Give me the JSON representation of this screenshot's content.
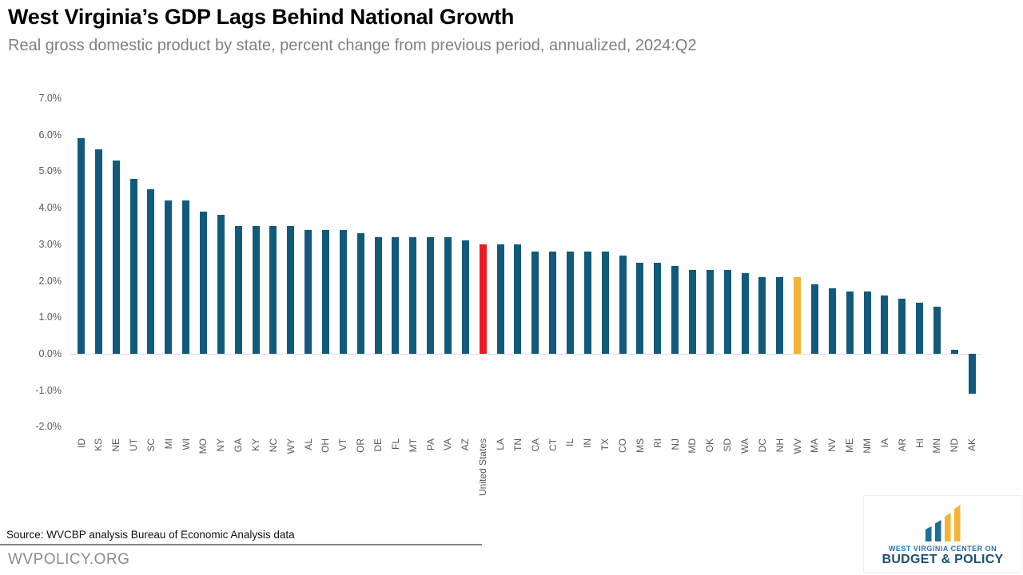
{
  "header": {
    "title": "West Virginia’s GDP Lags Behind National Growth",
    "subtitle": "Real gross domestic product by state, percent change from previous period, annualized, 2024:Q2"
  },
  "chart_data": {
    "type": "bar",
    "title": "West Virginia’s GDP Lags Behind National Growth",
    "subtitle": "Real gross domestic product by state, percent change from previous period, annualized, 2024:Q2",
    "categories": [
      "ID",
      "KS",
      "NE",
      "UT",
      "SC",
      "MI",
      "WI",
      "MO",
      "NY",
      "GA",
      "KY",
      "NC",
      "WY",
      "AL",
      "OH",
      "VT",
      "OR",
      "DE",
      "FL",
      "MT",
      "PA",
      "VA",
      "AZ",
      "United States",
      "LA",
      "TN",
      "CA",
      "CT",
      "IL",
      "IN",
      "TX",
      "CO",
      "MS",
      "RI",
      "NJ",
      "MD",
      "OK",
      "SD",
      "WA",
      "DC",
      "NH",
      "WV",
      "MA",
      "NV",
      "ME",
      "NM",
      "IA",
      "AR",
      "HI",
      "MN",
      "ND",
      "AK"
    ],
    "values": [
      5.9,
      5.6,
      5.3,
      4.8,
      4.5,
      4.2,
      4.2,
      3.9,
      3.8,
      3.5,
      3.5,
      3.5,
      3.5,
      3.4,
      3.4,
      3.4,
      3.3,
      3.2,
      3.2,
      3.2,
      3.2,
      3.2,
      3.1,
      3.0,
      3.0,
      3.0,
      2.8,
      2.8,
      2.8,
      2.8,
      2.8,
      2.7,
      2.5,
      2.5,
      2.4,
      2.3,
      2.3,
      2.3,
      2.2,
      2.1,
      2.1,
      2.1,
      1.9,
      1.8,
      1.7,
      1.7,
      1.6,
      1.5,
      1.4,
      1.3,
      0.1,
      -1.1
    ],
    "xlabel": "",
    "ylabel": "",
    "ylim": [
      -2.0,
      7.0
    ],
    "yticks": [
      "7.0%",
      "6.0%",
      "5.0%",
      "4.0%",
      "3.0%",
      "2.0%",
      "1.0%",
      "0.0%",
      "-1.0%",
      "-2.0%"
    ],
    "grid": "zero-line-only",
    "legend": "none",
    "colors": {
      "default": "#115a7c",
      "red": "#ec1c24",
      "gold": "#f6b233"
    },
    "highlight_colors": {
      "United States": "red",
      "WV": "gold"
    }
  },
  "footer": {
    "source": "Source: WVCBP analysis Bureau of Economic Analysis data",
    "website": "WVPOLICY.ORG"
  },
  "logo": {
    "line1": "WEST VIRGINIA CENTER ON",
    "line2": "BUDGET & POLICY",
    "brand_teal": "#1c6e96",
    "brand_gold": "#f6b233",
    "brand_blue": "#2473b5",
    "brand_navy": "#1e5174"
  }
}
